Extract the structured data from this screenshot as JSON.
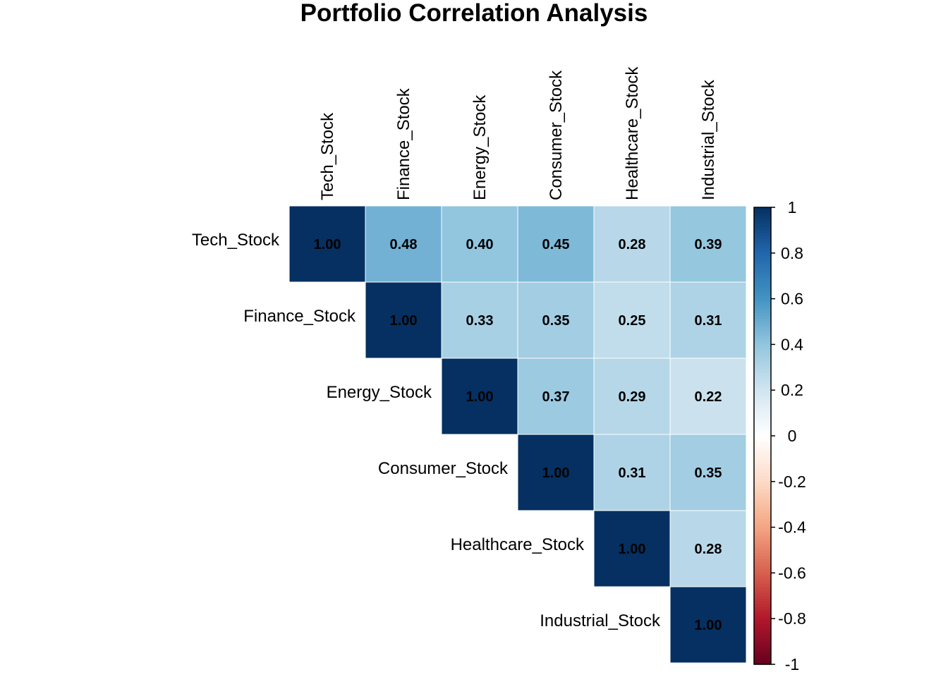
{
  "chart_data": {
    "type": "heatmap",
    "title": "Portfolio Correlation Analysis",
    "layout": "upper-triangle",
    "variables": [
      "Tech_Stock",
      "Finance_Stock",
      "Energy_Stock",
      "Consumer_Stock",
      "Healthcare_Stock",
      "Industrial_Stock"
    ],
    "matrix": [
      [
        1.0,
        0.48,
        0.4,
        0.45,
        0.28,
        0.39
      ],
      [
        null,
        1.0,
        0.33,
        0.35,
        0.25,
        0.31
      ],
      [
        null,
        null,
        1.0,
        0.37,
        0.29,
        0.22
      ],
      [
        null,
        null,
        null,
        1.0,
        0.31,
        0.35
      ],
      [
        null,
        null,
        null,
        null,
        1.0,
        0.28
      ],
      [
        null,
        null,
        null,
        null,
        null,
        1.0
      ]
    ],
    "value_format": "0.00",
    "colorbar": {
      "range": [
        -1,
        1
      ],
      "ticks": [
        1,
        0.8,
        0.6,
        0.4,
        0.2,
        0,
        -0.2,
        -0.4,
        -0.6,
        -0.8,
        -1
      ],
      "tick_labels": [
        "1",
        "0.8",
        "0.6",
        "0.4",
        "0.2",
        "0",
        "-0.2",
        "-0.4",
        "-0.6",
        "-0.8",
        "-1"
      ],
      "palette": [
        "#67001F",
        "#B2182B",
        "#D6604D",
        "#F4A582",
        "#FDDBC7",
        "#FFFFFF",
        "#D1E5F0",
        "#92C5DE",
        "#4393C3",
        "#2166AC",
        "#053061"
      ]
    }
  }
}
